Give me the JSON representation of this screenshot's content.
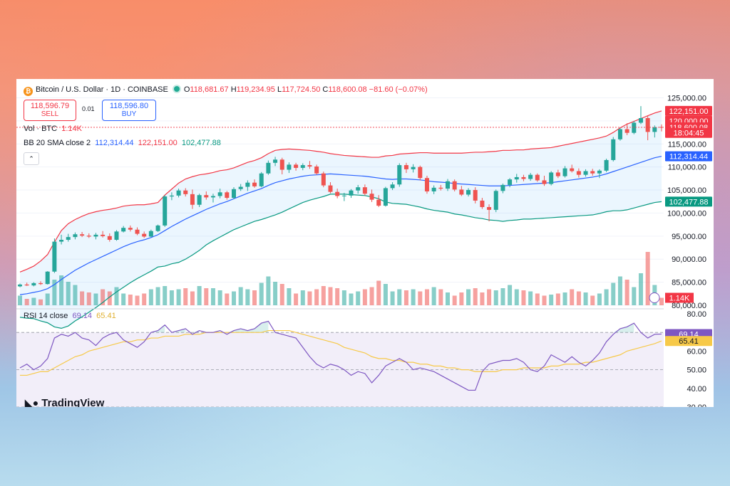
{
  "header": {
    "symbol": "Bitcoin / U.S. Dollar · 1D · COINBASE",
    "open_label": "O",
    "open": "118,681.67",
    "high_label": "H",
    "high": "119,234.95",
    "low_label": "L",
    "low": "117,724.50",
    "close_label": "C",
    "close": "118,600.08",
    "change": "−81.60 (−0.07%)"
  },
  "trade": {
    "sell_price": "118,596.79",
    "sell_label": "SELL",
    "spread": "0.01",
    "buy_price": "118,596.80",
    "buy_label": "BUY"
  },
  "indicators": {
    "vol_label": "Vol · BTC",
    "vol_value": "1.14K",
    "bb_label": "BB 20 SMA close 2",
    "bb_basis": "112,314.44",
    "bb_upper": "122,151.00",
    "bb_lower": "102,477.88",
    "rsi_label": "RSI 14 close",
    "rsi_value": "69.14",
    "rsi_ma": "65.41"
  },
  "collapse_icon": "chevron-up-icon",
  "branding": "TradingView",
  "colors": {
    "up": "#26a69a",
    "down": "#ef5350",
    "bb_upper": "#f23645",
    "bb_basis": "#2962ff",
    "bb_lower": "#089981",
    "rsi": "#7e57c2",
    "rsi_ma": "#f7c948"
  },
  "chart_data": [
    {
      "type": "candlestick",
      "title": "Bitcoin / U.S. Dollar · 1D · COINBASE",
      "ylim": [
        80000,
        126000
      ],
      "yticks": [
        "125,000.00",
        "120,000.00",
        "115,000.00",
        "110,000.00",
        "105,000.00",
        "100,000.00",
        "95,000.00",
        "90,000.00",
        "85,000.00",
        "80,000.00"
      ],
      "price_labels": {
        "upper": "122,151.00",
        "ask": "120,000.00",
        "last": "118,600.08",
        "countdown": "18:04:45",
        "basis": "112,314.44",
        "lower": "102,477.88"
      },
      "candles": [
        [
          84100,
          84700,
          83900,
          84500
        ],
        [
          84500,
          84900,
          84200,
          84300
        ],
        [
          84300,
          85000,
          84100,
          84800
        ],
        [
          84800,
          85200,
          84400,
          84600
        ],
        [
          84600,
          87400,
          84500,
          87300
        ],
        [
          87300,
          94500,
          87000,
          93800
        ],
        [
          93800,
          95300,
          93200,
          94200
        ],
        [
          94200,
          95500,
          93800,
          94800
        ],
        [
          94800,
          95800,
          94300,
          95400
        ],
        [
          95400,
          95900,
          94800,
          95100
        ],
        [
          95100,
          95600,
          94600,
          94900
        ],
        [
          94900,
          95700,
          94300,
          95300
        ],
        [
          95300,
          96100,
          94700,
          95000
        ],
        [
          95000,
          95600,
          93800,
          94200
        ],
        [
          94200,
          96300,
          94000,
          96000
        ],
        [
          96000,
          97200,
          95800,
          96800
        ],
        [
          96800,
          97300,
          96000,
          96400
        ],
        [
          96400,
          96900,
          95200,
          95500
        ],
        [
          95500,
          96000,
          94600,
          94900
        ],
        [
          94900,
          96400,
          94800,
          96100
        ],
        [
          96100,
          97500,
          95900,
          97300
        ],
        [
          97300,
          103900,
          97000,
          103600
        ],
        [
          103600,
          104500,
          102800,
          103800
        ],
        [
          103800,
          105300,
          103400,
          104900
        ],
        [
          104900,
          105400,
          103600,
          104100
        ],
        [
          104100,
          105100,
          100900,
          101800
        ],
        [
          101800,
          104200,
          101300,
          103900
        ],
        [
          103900,
          104700,
          102900,
          103400
        ],
        [
          103400,
          104200,
          102300,
          103700
        ],
        [
          103700,
          105300,
          103200,
          104500
        ],
        [
          104500,
          104800,
          102900,
          103300
        ],
        [
          103300,
          105600,
          103000,
          105200
        ],
        [
          105200,
          106300,
          104800,
          105700
        ],
        [
          105700,
          107100,
          104800,
          106600
        ],
        [
          106600,
          107300,
          105500,
          105800
        ],
        [
          105800,
          108900,
          105600,
          108600
        ],
        [
          108600,
          111400,
          108300,
          110900
        ],
        [
          110900,
          112200,
          110200,
          111600
        ],
        [
          111600,
          112000,
          108400,
          109400
        ],
        [
          109400,
          111000,
          108700,
          110500
        ],
        [
          110500,
          110900,
          109200,
          109800
        ],
        [
          109800,
          110800,
          109300,
          110400
        ],
        [
          110400,
          111300,
          109600,
          110100
        ],
        [
          110100,
          110500,
          108300,
          108600
        ],
        [
          108600,
          109000,
          105600,
          106000
        ],
        [
          106000,
          106700,
          104300,
          104600
        ],
        [
          104600,
          105300,
          103200,
          103700
        ],
        [
          103700,
          104400,
          102600,
          103800
        ],
        [
          103800,
          105200,
          103300,
          104900
        ],
        [
          104900,
          106100,
          104200,
          105600
        ],
        [
          105600,
          106200,
          103800,
          104200
        ],
        [
          104200,
          105100,
          102400,
          102900
        ],
        [
          102900,
          103900,
          101300,
          101600
        ],
        [
          101600,
          105700,
          101400,
          105400
        ],
        [
          105400,
          106700,
          105000,
          106200
        ],
        [
          106200,
          110800,
          105700,
          110400
        ],
        [
          110400,
          110900,
          108700,
          109500
        ],
        [
          109500,
          110600,
          108800,
          110000
        ],
        [
          110000,
          110300,
          107100,
          107600
        ],
        [
          107600,
          108100,
          104200,
          104700
        ],
        [
          104700,
          106000,
          104100,
          105500
        ],
        [
          105500,
          106100,
          104900,
          105300
        ],
        [
          105300,
          107400,
          104800,
          106900
        ],
        [
          106900,
          107300,
          104700,
          105100
        ],
        [
          105100,
          105900,
          103700,
          104000
        ],
        [
          104000,
          105400,
          103600,
          105000
        ],
        [
          105000,
          105600,
          102100,
          102700
        ],
        [
          102700,
          103300,
          100900,
          101300
        ],
        [
          101300,
          101900,
          98200,
          100700
        ],
        [
          100700,
          105100,
          100200,
          104800
        ],
        [
          104800,
          106400,
          104300,
          106100
        ],
        [
          106100,
          107600,
          105600,
          107300
        ],
        [
          107300,
          108500,
          106600,
          107800
        ],
        [
          107800,
          108300,
          106900,
          107400
        ],
        [
          107400,
          108700,
          107000,
          108300
        ],
        [
          108300,
          108600,
          106800,
          107100
        ],
        [
          107100,
          108100,
          105900,
          106300
        ],
        [
          106300,
          109100,
          106000,
          108800
        ],
        [
          108800,
          109400,
          107600,
          108000
        ],
        [
          108000,
          110200,
          107700,
          109700
        ],
        [
          109700,
          110500,
          108800,
          109100
        ],
        [
          109100,
          109700,
          107700,
          108300
        ],
        [
          108300,
          109500,
          107900,
          109100
        ],
        [
          109100,
          109600,
          108100,
          108600
        ],
        [
          108600,
          109500,
          107600,
          109200
        ],
        [
          109200,
          111800,
          108900,
          111500
        ],
        [
          111500,
          116500,
          111200,
          116000
        ],
        [
          116000,
          118500,
          115700,
          118200
        ],
        [
          118200,
          119500,
          116900,
          117400
        ],
        [
          117400,
          120000,
          117100,
          119600
        ],
        [
          119600,
          123200,
          119300,
          120600
        ],
        [
          120600,
          121000,
          115800,
          117600
        ],
        [
          117600,
          119000,
          116400,
          118600
        ],
        [
          118681.67,
          119234.95,
          117724.5,
          118600.08
        ]
      ],
      "bb_upper": [
        87200,
        87800,
        88500,
        89600,
        91000,
        93700,
        96200,
        97700,
        98600,
        99300,
        99900,
        100300,
        100600,
        100800,
        101100,
        101500,
        101700,
        101800,
        101800,
        102000,
        102300,
        103900,
        105200,
        106500,
        107400,
        107900,
        108300,
        108500,
        108800,
        109200,
        109400,
        109800,
        110400,
        111000,
        111400,
        112000,
        112900,
        113600,
        113800,
        113900,
        113800,
        113700,
        113600,
        113400,
        113200,
        112900,
        112700,
        112500,
        112400,
        112300,
        112200,
        112100,
        112100,
        112400,
        112500,
        112800,
        112900,
        113000,
        113100,
        113100,
        113000,
        113000,
        113000,
        113000,
        113000,
        113100,
        113200,
        113200,
        113300,
        113400,
        113600,
        113600,
        113700,
        113700,
        113900,
        114000,
        114100,
        114200,
        114500,
        114800,
        115100,
        115400,
        115700,
        116000,
        116300,
        116700,
        117500,
        118500,
        119300,
        119900,
        120500,
        121100,
        121700,
        122151
      ],
      "bb_basis": [
        82300,
        82500,
        82800,
        83100,
        83600,
        84500,
        85600,
        86600,
        87600,
        88400,
        89200,
        89900,
        90600,
        91300,
        92000,
        92700,
        93300,
        93800,
        94200,
        94700,
        95300,
        96200,
        97100,
        97900,
        98700,
        99400,
        100100,
        100800,
        101400,
        102000,
        102500,
        103100,
        103700,
        104300,
        104800,
        105300,
        106000,
        106600,
        107000,
        107400,
        107700,
        108000,
        108200,
        108300,
        108400,
        108500,
        108400,
        108300,
        108200,
        108100,
        108000,
        107800,
        107600,
        107400,
        107300,
        107400,
        107400,
        107300,
        107200,
        107000,
        106800,
        106700,
        106600,
        106400,
        106300,
        106200,
        106100,
        106000,
        105900,
        105900,
        105900,
        106000,
        106100,
        106200,
        106300,
        106400,
        106500,
        106600,
        106800,
        107000,
        107200,
        107400,
        107600,
        107800,
        108100,
        108500,
        109000,
        109500,
        110000,
        110500,
        111000,
        111500,
        112000,
        112314.44
      ],
      "bb_lower": [
        77400,
        77200,
        77100,
        76600,
        76200,
        75300,
        75000,
        75500,
        76600,
        77500,
        78500,
        79500,
        80600,
        81800,
        82900,
        83900,
        84900,
        85800,
        86600,
        87400,
        88300,
        88500,
        89000,
        89300,
        90000,
        90900,
        91900,
        93100,
        94000,
        94800,
        95600,
        96400,
        97000,
        97600,
        98200,
        98600,
        99100,
        99600,
        100200,
        100900,
        101600,
        102300,
        102800,
        103200,
        103600,
        104100,
        104100,
        104100,
        104000,
        103900,
        103800,
        103500,
        103100,
        102400,
        102100,
        102000,
        101900,
        101600,
        101300,
        100900,
        100600,
        100400,
        100200,
        99800,
        99600,
        99300,
        99000,
        98800,
        98500,
        98400,
        98200,
        98400,
        98500,
        98700,
        98700,
        98800,
        98900,
        99000,
        99100,
        99200,
        99300,
        99400,
        99500,
        99600,
        99900,
        100300,
        100500,
        100500,
        100700,
        101100,
        101500,
        101900,
        102300,
        102477.88
      ],
      "volume": [
        18,
        12,
        14,
        11,
        22,
        48,
        56,
        44,
        38,
        26,
        24,
        22,
        30,
        26,
        34,
        22,
        20,
        18,
        22,
        30,
        34,
        36,
        28,
        30,
        32,
        26,
        36,
        32,
        32,
        28,
        22,
        26,
        34,
        30,
        28,
        42,
        54,
        44,
        40,
        32,
        22,
        28,
        26,
        30,
        36,
        34,
        32,
        28,
        22,
        26,
        30,
        34,
        46,
        40,
        26,
        30,
        28,
        30,
        26,
        30,
        34,
        30,
        24,
        18,
        24,
        30,
        32,
        24,
        30,
        28,
        32,
        38,
        30,
        28,
        26,
        22,
        18,
        20,
        22,
        24,
        30,
        26,
        24,
        18,
        22,
        30,
        42,
        54,
        48,
        34,
        60,
        100,
        38,
        14
      ],
      "volume_label": "1.14K"
    },
    {
      "type": "line",
      "title": "RSI 14 close",
      "ylim": [
        30,
        80
      ],
      "yticks": [
        "80.00",
        "70.00",
        "60.00",
        "50.00",
        "40.00",
        "30.00"
      ],
      "bands": [
        70,
        50,
        30
      ],
      "rsi": [
        51,
        53,
        50,
        52,
        56,
        67,
        69,
        68,
        70,
        67,
        66,
        63,
        67,
        69,
        70,
        66,
        64,
        62,
        65,
        70,
        71,
        74,
        70,
        71,
        72,
        69,
        71,
        70,
        70,
        71,
        69,
        71,
        72,
        71,
        72,
        75,
        76,
        70,
        69,
        68,
        67,
        62,
        57,
        53,
        51,
        53,
        52,
        50,
        47,
        49,
        48,
        43,
        47,
        52,
        54,
        56,
        54,
        50,
        51,
        50,
        49,
        47,
        45,
        43,
        41,
        39,
        39,
        49,
        53,
        54,
        55,
        55,
        56,
        54,
        50,
        49,
        52,
        58,
        56,
        54,
        57,
        54,
        52,
        55,
        59,
        65,
        69,
        72,
        73,
        75,
        70,
        67,
        69,
        69.14
      ],
      "rsi_ma": [
        47,
        47,
        48,
        49,
        49,
        51,
        53,
        55,
        57,
        58,
        60,
        61,
        62,
        63,
        64,
        65,
        65,
        66,
        66,
        67,
        67,
        68,
        68,
        68,
        69,
        69,
        69,
        70,
        70,
        70,
        70,
        70,
        70,
        70,
        70,
        70,
        71,
        71,
        71,
        71,
        70,
        69,
        68,
        67,
        66,
        65,
        64,
        62,
        61,
        60,
        59,
        57,
        56,
        56,
        55,
        55,
        54,
        54,
        53,
        53,
        52,
        52,
        51,
        51,
        50,
        50,
        49,
        49,
        49,
        49,
        50,
        50,
        50,
        51,
        51,
        51,
        51,
        52,
        52,
        53,
        53,
        53,
        54,
        54,
        55,
        56,
        57,
        58,
        60,
        61,
        62,
        63,
        64,
        65.41
      ]
    }
  ]
}
